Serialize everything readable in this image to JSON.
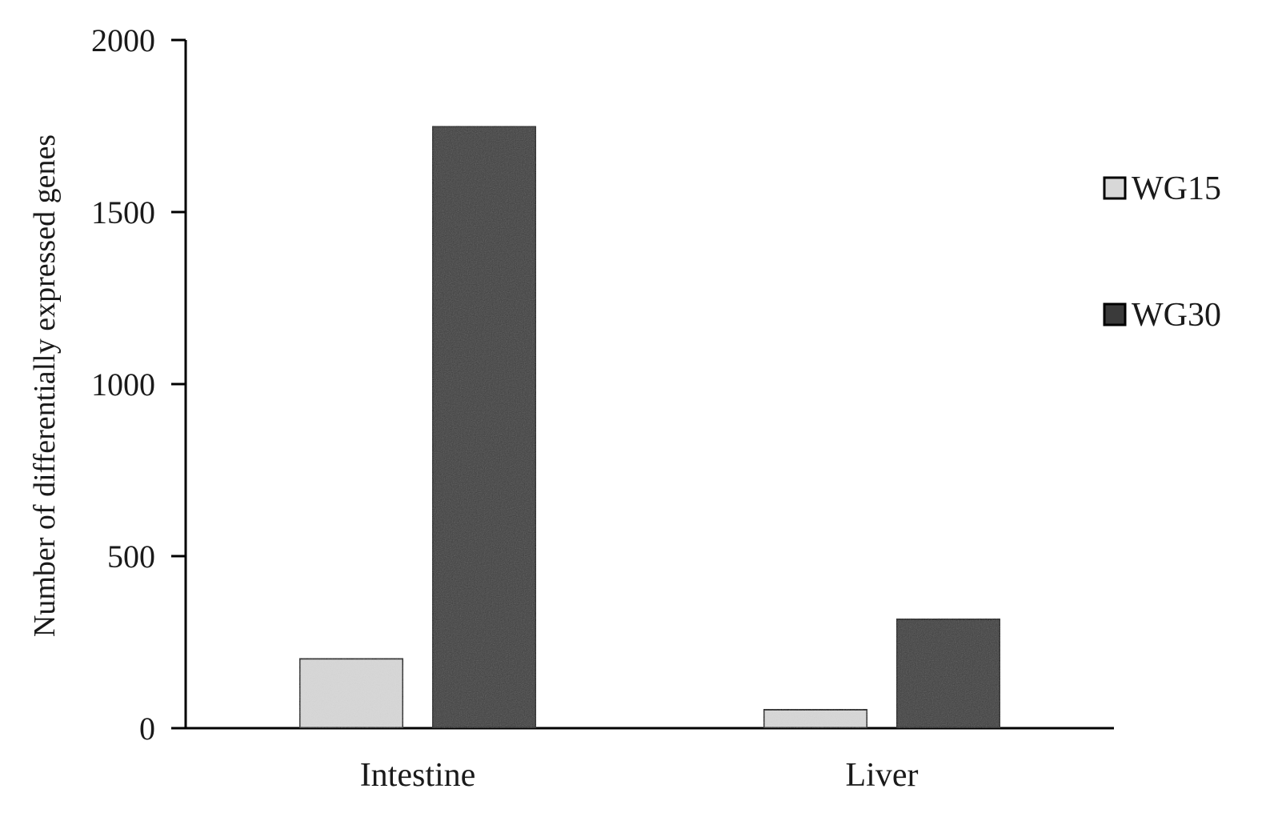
{
  "chart_data": {
    "type": "bar",
    "categories": [
      "Intestine",
      "Liver"
    ],
    "series": [
      {
        "name": "WG15",
        "values": [
          203,
          55
        ],
        "color": "#d8d8d8"
      },
      {
        "name": "WG30",
        "values": [
          1750,
          318
        ],
        "color": "#3a3a3a"
      }
    ],
    "ylabel": "Number of differentially expressed genes",
    "xlabel": "",
    "ylim": [
      0,
      2000
    ],
    "yticks": [
      "0",
      "500",
      "1000",
      "1500",
      "2000"
    ],
    "grid": false,
    "legend_position": "right"
  }
}
